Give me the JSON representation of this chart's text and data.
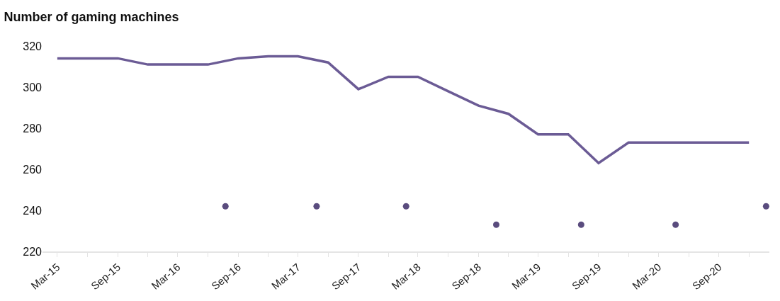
{
  "chart_data": {
    "type": "line",
    "title": "Number of gaming machines",
    "x": [
      "2015-03",
      "2015-06",
      "2015-09",
      "2015-12",
      "2016-03",
      "2016-06",
      "2016-09",
      "2016-12",
      "2017-03",
      "2017-06",
      "2017-09",
      "2017-12",
      "2018-03",
      "2018-06",
      "2018-09",
      "2018-12",
      "2019-03",
      "2019-06",
      "2019-09",
      "2019-12",
      "2020-03",
      "2020-06",
      "2020-09",
      "2020-12"
    ],
    "series": [
      {
        "color": "#6b5b95",
        "marker": "none",
        "values": [
          314,
          314,
          314,
          311,
          311,
          311,
          314,
          315,
          315,
          312,
          299,
          305,
          305,
          298,
          291,
          287,
          277,
          277,
          263,
          273,
          273,
          273,
          273,
          273
        ]
      },
      {
        "type": "scatter",
        "marker": "circle",
        "color": "#5a4c7e",
        "x": [
          "2016-07-24",
          "2017-04-27",
          "2018-01-24",
          "2018-10-25",
          "2019-07-10",
          "2020-04-22",
          "2021-01-22"
        ],
        "values": [
          242,
          242,
          242,
          233,
          233,
          233,
          242
        ]
      }
    ],
    "xlim": [
      "2015-01-15",
      "2021-02-01"
    ],
    "xticks": [
      {
        "value": "2015-03",
        "label": "Mar-15"
      },
      {
        "value": "2015-06",
        "label": null
      },
      {
        "value": "2015-09",
        "label": "Sep-15"
      },
      {
        "value": "2015-12",
        "label": null
      },
      {
        "value": "2016-03",
        "label": "Mar-16"
      },
      {
        "value": "2016-06",
        "label": null
      },
      {
        "value": "2016-09",
        "label": "Sep-16"
      },
      {
        "value": "2016-12",
        "label": null
      },
      {
        "value": "2017-03",
        "label": "Mar-17"
      },
      {
        "value": "2017-06",
        "label": null
      },
      {
        "value": "2017-09",
        "label": "Sep-17"
      },
      {
        "value": "2017-12",
        "label": null
      },
      {
        "value": "2018-03",
        "label": "Mar-18"
      },
      {
        "value": "2018-06",
        "label": null
      },
      {
        "value": "2018-09",
        "label": "Sep-18"
      },
      {
        "value": "2018-12",
        "label": null
      },
      {
        "value": "2019-03",
        "label": "Mar-19"
      },
      {
        "value": "2019-06",
        "label": null
      },
      {
        "value": "2019-09",
        "label": "Sep-19"
      },
      {
        "value": "2019-12",
        "label": null
      },
      {
        "value": "2020-03",
        "label": "Mar-20"
      },
      {
        "value": "2020-06",
        "label": null
      },
      {
        "value": "2020-09",
        "label": "Sep-20"
      },
      {
        "value": "2020-12",
        "label": null
      }
    ],
    "ylim": [
      220,
      320
    ],
    "yticks": [
      220,
      240,
      260,
      280,
      300,
      320
    ],
    "line_style": "solid"
  }
}
